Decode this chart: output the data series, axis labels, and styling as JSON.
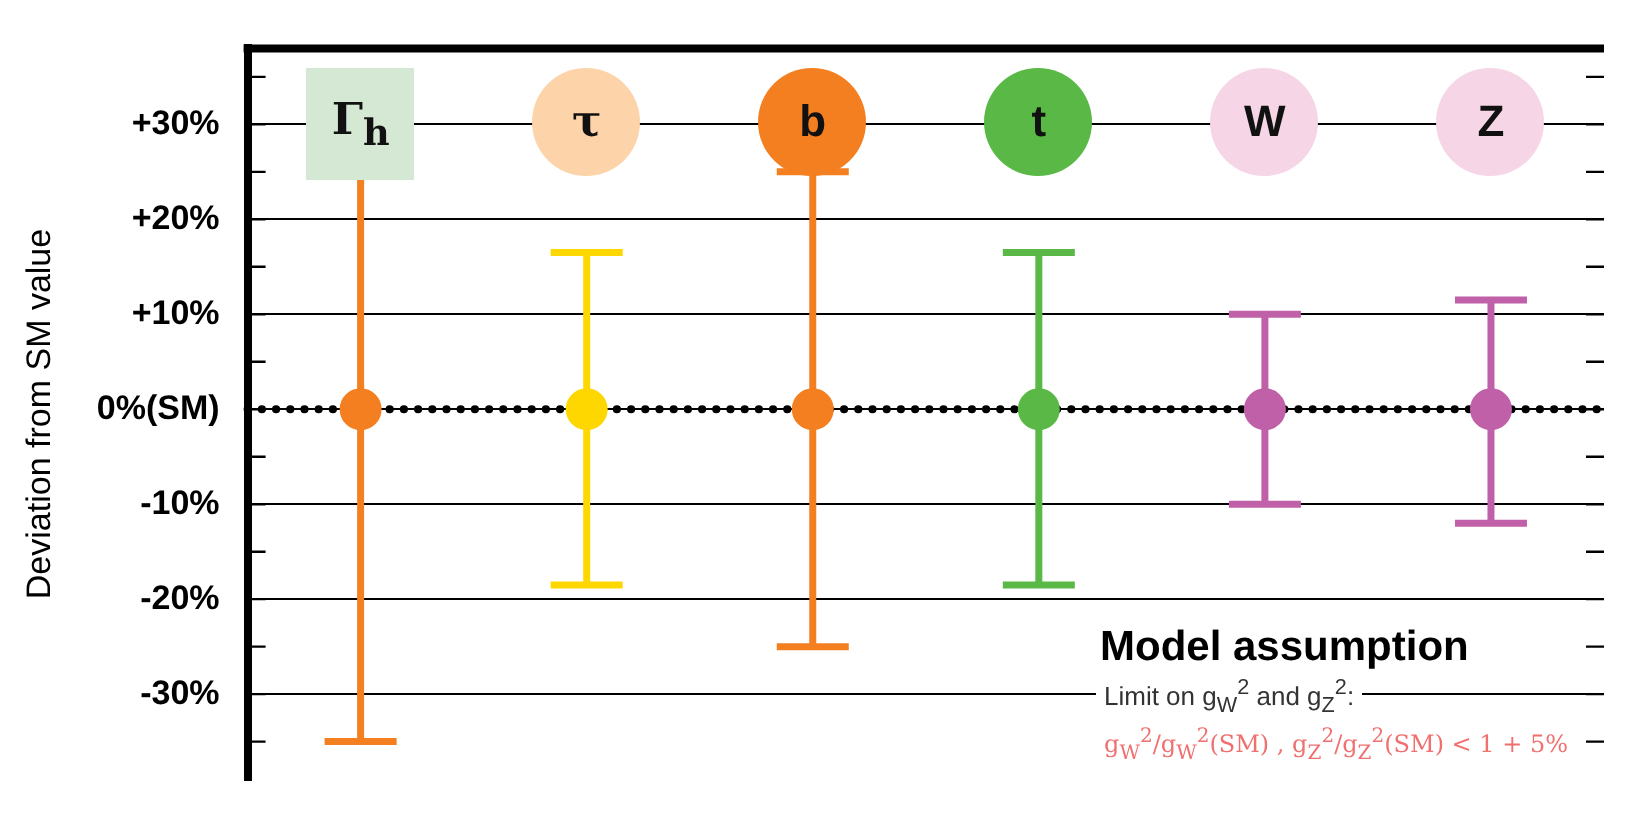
{
  "chart_data": {
    "type": "scatter",
    "ylabel": "Deviation from SM value",
    "categories": [
      "Γ$_{h}$",
      "τ",
      "b",
      "t",
      "W",
      "Z"
    ],
    "values": [
      0,
      0,
      0,
      0,
      0,
      0
    ],
    "colors": [
      "#f47f20",
      "#ffd700",
      "#f47f20",
      "#5ab946",
      "#c060a8",
      "#c060a8"
    ],
    "errors": [
      35,
      [
        -18.5,
        16.5
      ],
      25,
      [
        -18.5,
        16.5
      ],
      10,
      [
        -12,
        11.5
      ]
    ],
    "ylim": [
      -39,
      38
    ],
    "yticks": [
      {
        "value": -35,
        "label": null
      },
      {
        "value": -30,
        "label": "-30%"
      },
      {
        "value": -25,
        "label": null
      },
      {
        "value": -20,
        "label": "-20%"
      },
      {
        "value": -15,
        "label": null
      },
      {
        "value": -10,
        "label": "-10%"
      },
      {
        "value": -5,
        "label": null
      },
      {
        "value": 0,
        "label": "0%(SM)"
      },
      {
        "value": 5,
        "label": null
      },
      {
        "value": 10,
        "label": "+10%"
      },
      {
        "value": 15,
        "label": null
      },
      {
        "value": 20,
        "label": "+20%"
      },
      {
        "value": 25,
        "label": null
      },
      {
        "value": 30,
        "label": "+30%"
      },
      {
        "value": 35,
        "label": null
      }
    ],
    "grid": true,
    "legend": false,
    "marker": "circle",
    "ref_lines": [
      {
        "axis": "y",
        "value": 0,
        "color": "#000000",
        "line_style": "dotted"
      }
    ],
    "annotations": [
      "Model assumption",
      "Limit on g$_{W}$$^{2}$ and g$_{Z}$$^{2}$:",
      "g$_{W}$$^{2}$/g$_{W}$$^{2}$(SM) , g$_{Z}$$^{2}$/g$_{Z}$$^{2}$(SM) < 1 + 5%"
    ]
  }
}
